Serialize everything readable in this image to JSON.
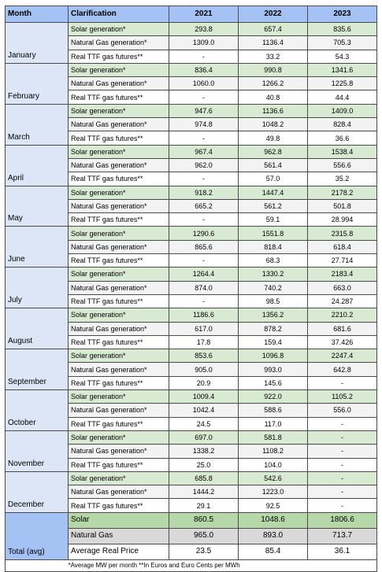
{
  "header": {
    "month": "Month",
    "clarification": "Clarification",
    "years": [
      "2021",
      "2022",
      "2023"
    ]
  },
  "row_labels": {
    "solar": "Solar generation*",
    "gas": "Natural Gas generation*",
    "ttf": "Real TTF gas futures**"
  },
  "months": [
    {
      "name": "January",
      "solar": [
        "293.8",
        "657.4",
        "835.6"
      ],
      "gas": [
        "1309.0",
        "1136.4",
        "705.3"
      ],
      "ttf": [
        "-",
        "33.2",
        "54.3"
      ]
    },
    {
      "name": "February",
      "solar": [
        "836.4",
        "990.8",
        "1341.6"
      ],
      "gas": [
        "1060.0",
        "1266.2",
        "1225.8"
      ],
      "ttf": [
        "-",
        "40.8",
        "44.4"
      ]
    },
    {
      "name": "March",
      "solar": [
        "947.6",
        "1136.6",
        "1409.0"
      ],
      "gas": [
        "974.8",
        "1048.2",
        "828.4"
      ],
      "ttf": [
        "-",
        "49.8",
        "36.6"
      ]
    },
    {
      "name": "April",
      "solar": [
        "967.4",
        "962.8",
        "1538.4"
      ],
      "gas": [
        "962.0",
        "561.4",
        "556.6"
      ],
      "ttf": [
        "-",
        "57.0",
        "35.2"
      ]
    },
    {
      "name": "May",
      "solar": [
        "918.2",
        "1447.4",
        "2178.2"
      ],
      "gas": [
        "665.2",
        "561.2",
        "501.8"
      ],
      "ttf": [
        "-",
        "59.1",
        "28.994"
      ]
    },
    {
      "name": "June",
      "solar": [
        "1290.6",
        "1551.8",
        "2315.8"
      ],
      "gas": [
        "865.6",
        "818.4",
        "618.4"
      ],
      "ttf": [
        "-",
        "68.3",
        "27.714"
      ]
    },
    {
      "name": "July",
      "solar": [
        "1264.4",
        "1330.2",
        "2183.4"
      ],
      "gas": [
        "874.0",
        "740.2",
        "663.0"
      ],
      "ttf": [
        "-",
        "98.5",
        "24.287"
      ]
    },
    {
      "name": "August",
      "solar": [
        "1186.6",
        "1356.2",
        "2210.2"
      ],
      "gas": [
        "617.0",
        "878.2",
        "681.6"
      ],
      "ttf": [
        "17.8",
        "159.4",
        "37.426"
      ]
    },
    {
      "name": "September",
      "solar": [
        "853.6",
        "1096.8",
        "2247.4"
      ],
      "gas": [
        "905.0",
        "993.0",
        "642.8"
      ],
      "ttf": [
        "20.9",
        "145.6",
        "-"
      ]
    },
    {
      "name": "October",
      "solar": [
        "1009.4",
        "922.0",
        "1105.2"
      ],
      "gas": [
        "1042.4",
        "588.6",
        "556.0"
      ],
      "ttf": [
        "24.5",
        "117.0",
        "-"
      ]
    },
    {
      "name": "November",
      "solar": [
        "697.0",
        "581.8",
        "-"
      ],
      "gas": [
        "1338.2",
        "1108.2",
        "-"
      ],
      "ttf": [
        "25.0",
        "104.0",
        "-"
      ]
    },
    {
      "name": "December",
      "solar": [
        "685.8",
        "542.6",
        "-"
      ],
      "gas": [
        "1444.2",
        "1223.0",
        "-"
      ],
      "ttf": [
        "29.1",
        "92.5",
        "-"
      ]
    }
  ],
  "total": {
    "label": "Total (avg)",
    "rows": [
      {
        "key": "solar",
        "label": "Solar",
        "values": [
          "860.5",
          "1048.6",
          "1806.6"
        ]
      },
      {
        "key": "gas",
        "label": "Natural Gas",
        "values": [
          "965.0",
          "893.0",
          "713.7"
        ]
      },
      {
        "key": "price",
        "label": "Average Real Price",
        "values": [
          "23.5",
          "85.4",
          "36.1"
        ]
      }
    ]
  },
  "footnote": "*Average MW per month **In Euros and Euro Cents per MWh"
}
